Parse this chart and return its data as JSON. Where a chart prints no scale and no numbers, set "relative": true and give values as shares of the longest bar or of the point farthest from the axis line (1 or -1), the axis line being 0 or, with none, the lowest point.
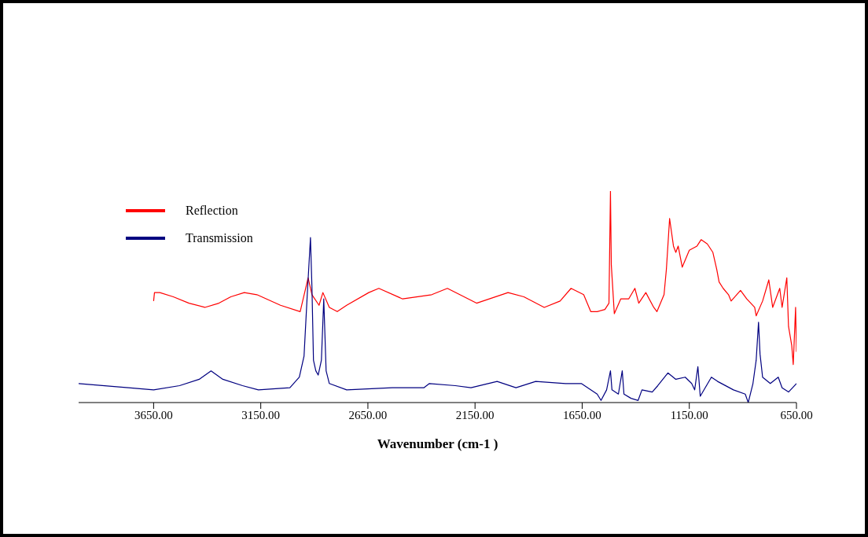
{
  "chart_data": {
    "type": "line",
    "xlabel": "Wavenumber (cm-1 )",
    "relative": true,
    "xlim": [
      4000,
      650
    ],
    "xticks": [
      {
        "value": 3650,
        "label": "3650.00"
      },
      {
        "value": 3150,
        "label": "3150.00"
      },
      {
        "value": 2650,
        "label": "2650.00"
      },
      {
        "value": 2150,
        "label": "2150.00"
      },
      {
        "value": 1650,
        "label": "1650.00"
      },
      {
        "value": 1150,
        "label": "1150.00"
      },
      {
        "value": 650,
        "label": "650.00"
      }
    ],
    "legend": "top left",
    "grid": false,
    "marker": "none",
    "line_style": "solid",
    "series": [
      {
        "name": "Reflection",
        "color": "#ff0000",
        "x": [
          3650,
          3646,
          3621,
          3558,
          3485,
          3411,
          3345,
          3290,
          3227,
          3168,
          3058,
          2966,
          2929,
          2911,
          2878,
          2860,
          2830,
          2793,
          2749,
          2646,
          2599,
          2488,
          2352,
          2279,
          2143,
          1996,
          1922,
          1827,
          1753,
          1702,
          1643,
          1610,
          1580,
          1544,
          1525,
          1518,
          1514,
          1500,
          1470,
          1433,
          1404,
          1386,
          1353,
          1316,
          1301,
          1268,
          1257,
          1242,
          1224,
          1213,
          1202,
          1183,
          1150,
          1114,
          1095,
          1066,
          1040,
          1022,
          1011,
          992,
          967,
          955,
          911,
          882,
          845,
          838,
          808,
          779,
          761,
          728,
          717,
          695,
          687,
          672,
          665,
          654,
          650
        ],
        "values": [
          0.48,
          0.52,
          0.52,
          0.5,
          0.47,
          0.45,
          0.47,
          0.5,
          0.52,
          0.51,
          0.46,
          0.43,
          0.59,
          0.51,
          0.46,
          0.52,
          0.45,
          0.43,
          0.46,
          0.52,
          0.54,
          0.49,
          0.51,
          0.54,
          0.47,
          0.52,
          0.5,
          0.45,
          0.48,
          0.54,
          0.51,
          0.43,
          0.43,
          0.44,
          0.47,
          1,
          0.65,
          0.42,
          0.49,
          0.49,
          0.54,
          0.47,
          0.52,
          0.45,
          0.43,
          0.51,
          0.63,
          0.87,
          0.74,
          0.71,
          0.74,
          0.64,
          0.72,
          0.74,
          0.77,
          0.75,
          0.71,
          0.63,
          0.57,
          0.54,
          0.51,
          0.48,
          0.53,
          0.49,
          0.45,
          0.41,
          0.48,
          0.58,
          0.45,
          0.54,
          0.45,
          0.59,
          0.36,
          0.27,
          0.18,
          0.45,
          0.24
        ]
      },
      {
        "name": "Transmission",
        "color": "#000080",
        "x": [
          4000,
          3768,
          3650,
          3529,
          3437,
          3382,
          3327,
          3235,
          3161,
          3014,
          2970,
          2948,
          2933,
          2918,
          2911,
          2904,
          2893,
          2882,
          2867,
          2856,
          2845,
          2830,
          2749,
          2536,
          2389,
          2363,
          2242,
          2169,
          2047,
          1959,
          1867,
          1727,
          1654,
          1580,
          1562,
          1536,
          1518,
          1511,
          1481,
          1463,
          1455,
          1422,
          1389,
          1371,
          1323,
          1297,
          1250,
          1213,
          1169,
          1139,
          1125,
          1110,
          1099,
          1047,
          1018,
          944,
          889,
          875,
          853,
          838,
          827,
          820,
          808,
          772,
          735,
          717,
          687,
          650
        ],
        "values": [
          0.09,
          0.07,
          0.06,
          0.08,
          0.11,
          0.15,
          0.11,
          0.08,
          0.06,
          0.07,
          0.12,
          0.22,
          0.51,
          0.78,
          0.54,
          0.2,
          0.15,
          0.13,
          0.2,
          0.49,
          0.15,
          0.09,
          0.06,
          0.07,
          0.07,
          0.09,
          0.08,
          0.07,
          0.1,
          0.07,
          0.1,
          0.09,
          0.09,
          0.04,
          0.01,
          0.06,
          0.15,
          0.06,
          0.04,
          0.15,
          0.04,
          0.02,
          0.01,
          0.06,
          0.05,
          0.08,
          0.14,
          0.11,
          0.12,
          0.09,
          0.06,
          0.17,
          0.03,
          0.12,
          0.1,
          0.06,
          0.04,
          0,
          0.09,
          0.2,
          0.38,
          0.23,
          0.12,
          0.09,
          0.12,
          0.07,
          0.05,
          0.09
        ]
      }
    ]
  }
}
